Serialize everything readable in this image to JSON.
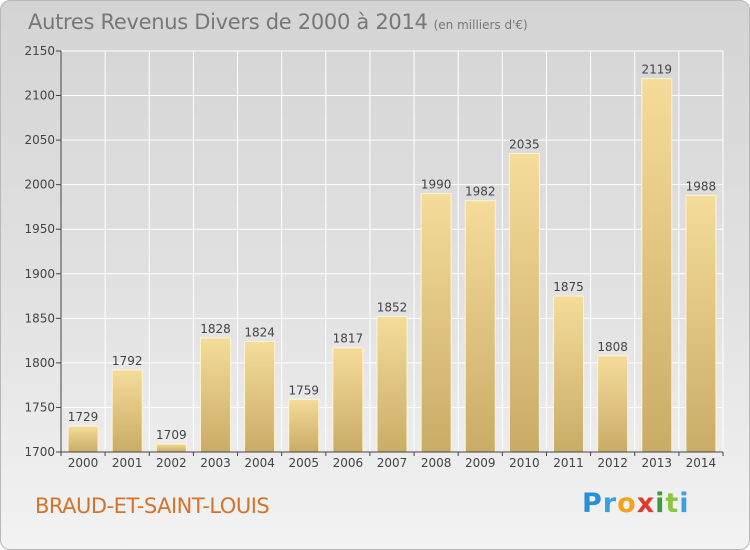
{
  "header": {
    "title": "Autres Revenus Divers de 2000 à 2014",
    "subtitle": "(en milliers d'€)"
  },
  "footer": {
    "place": "BRAUD-ET-SAINT-LOUIS"
  },
  "logo": {
    "letters": [
      "P",
      "r",
      "o",
      "x",
      "i",
      "t",
      "i"
    ],
    "colors": [
      "#2a8fd6",
      "#3aa0de",
      "#f2a21c",
      "#e03c2c",
      "#3a9a3c",
      "#8cc63f",
      "#3aa0de"
    ]
  },
  "colors": {
    "bar_top": "#f5dc9a",
    "bar_bottom": "#c9ac66",
    "bar_edge": "#fff4cf",
    "axis": "#444444",
    "grid": "#ffffff",
    "label": "#444444"
  },
  "chart_data": {
    "type": "bar",
    "title": "Autres Revenus Divers de 2000 à 2014",
    "subtitle": "(en milliers d'€)",
    "categories": [
      "2000",
      "2001",
      "2002",
      "2003",
      "2004",
      "2005",
      "2006",
      "2007",
      "2008",
      "2009",
      "2010",
      "2011",
      "2012",
      "2013",
      "2014"
    ],
    "values": [
      1729,
      1792,
      1709,
      1828,
      1824,
      1759,
      1817,
      1852,
      1990,
      1982,
      2035,
      1875,
      1808,
      2119,
      1988
    ],
    "ylim": [
      1700,
      2150
    ],
    "yticks": [
      1700,
      1750,
      1800,
      1850,
      1900,
      1950,
      2000,
      2050,
      2100,
      2150
    ],
    "grid": true,
    "data_labels": true
  }
}
